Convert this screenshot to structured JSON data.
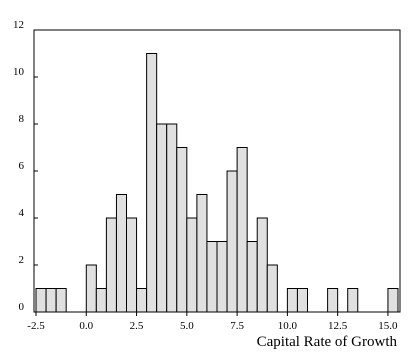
{
  "chart_data": {
    "type": "bar",
    "title": "",
    "xlabel": "Capital Rate of Growth",
    "ylabel": "",
    "bin_width": 0.5,
    "bins": [
      {
        "x0": -2.5,
        "x1": -2.0,
        "count": 1
      },
      {
        "x0": -2.0,
        "x1": -1.5,
        "count": 1
      },
      {
        "x0": -1.5,
        "x1": -1.0,
        "count": 1
      },
      {
        "x0": -1.0,
        "x1": -0.5,
        "count": 0
      },
      {
        "x0": -0.5,
        "x1": 0.0,
        "count": 0
      },
      {
        "x0": 0.0,
        "x1": 0.5,
        "count": 2
      },
      {
        "x0": 0.5,
        "x1": 1.0,
        "count": 1
      },
      {
        "x0": 1.0,
        "x1": 1.5,
        "count": 4
      },
      {
        "x0": 1.5,
        "x1": 2.0,
        "count": 5
      },
      {
        "x0": 2.0,
        "x1": 2.5,
        "count": 4
      },
      {
        "x0": 2.5,
        "x1": 3.0,
        "count": 1
      },
      {
        "x0": 3.0,
        "x1": 3.5,
        "count": 11
      },
      {
        "x0": 3.5,
        "x1": 4.0,
        "count": 8
      },
      {
        "x0": 4.0,
        "x1": 4.5,
        "count": 8
      },
      {
        "x0": 4.5,
        "x1": 5.0,
        "count": 7
      },
      {
        "x0": 5.0,
        "x1": 5.5,
        "count": 4
      },
      {
        "x0": 5.5,
        "x1": 6.0,
        "count": 5
      },
      {
        "x0": 6.0,
        "x1": 6.5,
        "count": 3
      },
      {
        "x0": 6.5,
        "x1": 7.0,
        "count": 3
      },
      {
        "x0": 7.0,
        "x1": 7.5,
        "count": 6
      },
      {
        "x0": 7.5,
        "x1": 8.0,
        "count": 7
      },
      {
        "x0": 8.0,
        "x1": 8.5,
        "count": 3
      },
      {
        "x0": 8.5,
        "x1": 9.0,
        "count": 4
      },
      {
        "x0": 9.0,
        "x1": 9.5,
        "count": 2
      },
      {
        "x0": 9.5,
        "x1": 10.0,
        "count": 0
      },
      {
        "x0": 10.0,
        "x1": 10.5,
        "count": 1
      },
      {
        "x0": 10.5,
        "x1": 11.0,
        "count": 1
      },
      {
        "x0": 11.0,
        "x1": 11.5,
        "count": 0
      },
      {
        "x0": 11.5,
        "x1": 12.0,
        "count": 0
      },
      {
        "x0": 12.0,
        "x1": 12.5,
        "count": 1
      },
      {
        "x0": 12.5,
        "x1": 13.0,
        "count": 0
      },
      {
        "x0": 13.0,
        "x1": 13.5,
        "count": 1
      },
      {
        "x0": 13.5,
        "x1": 14.0,
        "count": 0
      },
      {
        "x0": 14.0,
        "x1": 14.5,
        "count": 0
      },
      {
        "x0": 14.5,
        "x1": 15.0,
        "count": 0
      },
      {
        "x0": 15.0,
        "x1": 15.5,
        "count": 1
      }
    ],
    "xlim": [
      -2.6,
      15.6
    ],
    "ylim": [
      0,
      12
    ],
    "xticks": [
      -2.5,
      0.0,
      2.5,
      5.0,
      7.5,
      10.0,
      12.5,
      15.0
    ],
    "xtick_labels": [
      "-2.5",
      "0.0",
      "2.5",
      "5.0",
      "7.5",
      "10.0",
      "12.5",
      "15.0"
    ],
    "yticks": [
      0,
      2,
      4,
      6,
      8,
      10,
      12
    ],
    "ytick_labels": [
      "0",
      "2",
      "4",
      "6",
      "8",
      "10",
      "12"
    ],
    "grid": false,
    "bar_fill": "#e0e0e0",
    "bar_stroke": "#000000"
  }
}
